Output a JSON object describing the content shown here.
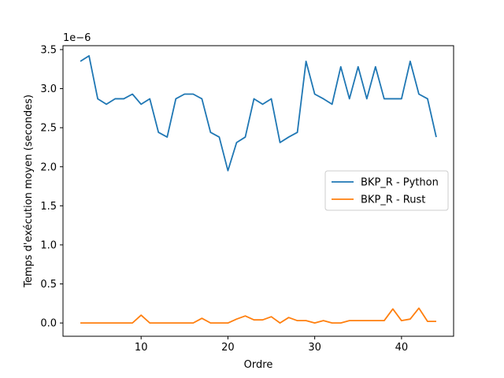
{
  "chart_data": {
    "type": "line",
    "title": "",
    "xlabel": "Ordre",
    "ylabel": "Temps d'exécution moyen (secondes)",
    "y_offset_label": "1e−6",
    "xlim": [
      1,
      46
    ],
    "ylim": [
      -0.17,
      3.55
    ],
    "x_ticks": [
      10,
      20,
      30,
      40
    ],
    "y_ticks": [
      0.0,
      0.5,
      1.0,
      1.5,
      2.0,
      2.5,
      3.0,
      3.5
    ],
    "x_tick_labels": [
      "10",
      "20",
      "30",
      "40"
    ],
    "y_tick_labels": [
      "0.0",
      "0.5",
      "1.0",
      "1.5",
      "2.0",
      "2.5",
      "3.0",
      "3.5"
    ],
    "grid": false,
    "legend_position": "center-right",
    "x": [
      3,
      4,
      5,
      6,
      7,
      8,
      9,
      10,
      11,
      12,
      13,
      14,
      15,
      16,
      17,
      18,
      19,
      20,
      21,
      22,
      23,
      24,
      25,
      26,
      27,
      28,
      29,
      30,
      31,
      32,
      33,
      34,
      35,
      36,
      37,
      38,
      39,
      40,
      41,
      42,
      43,
      44
    ],
    "series": [
      {
        "name": "BKP_R - Python",
        "color": "#1f77b4",
        "values": [
          3.35,
          3.42,
          2.87,
          2.8,
          2.87,
          2.87,
          2.93,
          2.8,
          2.87,
          2.44,
          2.38,
          2.87,
          2.93,
          2.93,
          2.87,
          2.44,
          2.38,
          1.95,
          2.31,
          2.38,
          2.87,
          2.8,
          2.87,
          2.31,
          2.38,
          2.44,
          3.35,
          2.93,
          2.87,
          2.8,
          3.28,
          2.87,
          3.28,
          2.87,
          3.28,
          2.87,
          2.87,
          2.87,
          3.35,
          2.93,
          2.87,
          2.38
        ]
      },
      {
        "name": "BKP_R - Rust",
        "color": "#ff7f0e",
        "values": [
          0.0,
          0.0,
          0.0,
          0.0,
          0.0,
          0.0,
          0.0,
          0.1,
          0.0,
          0.0,
          0.0,
          0.0,
          0.0,
          0.0,
          0.06,
          0.0,
          0.0,
          0.0,
          0.05,
          0.09,
          0.04,
          0.04,
          0.08,
          0.0,
          0.07,
          0.03,
          0.03,
          0.0,
          0.03,
          0.0,
          0.0,
          0.03,
          0.03,
          0.03,
          0.03,
          0.03,
          0.18,
          0.03,
          0.05,
          0.19,
          0.02,
          0.02
        ]
      }
    ]
  }
}
